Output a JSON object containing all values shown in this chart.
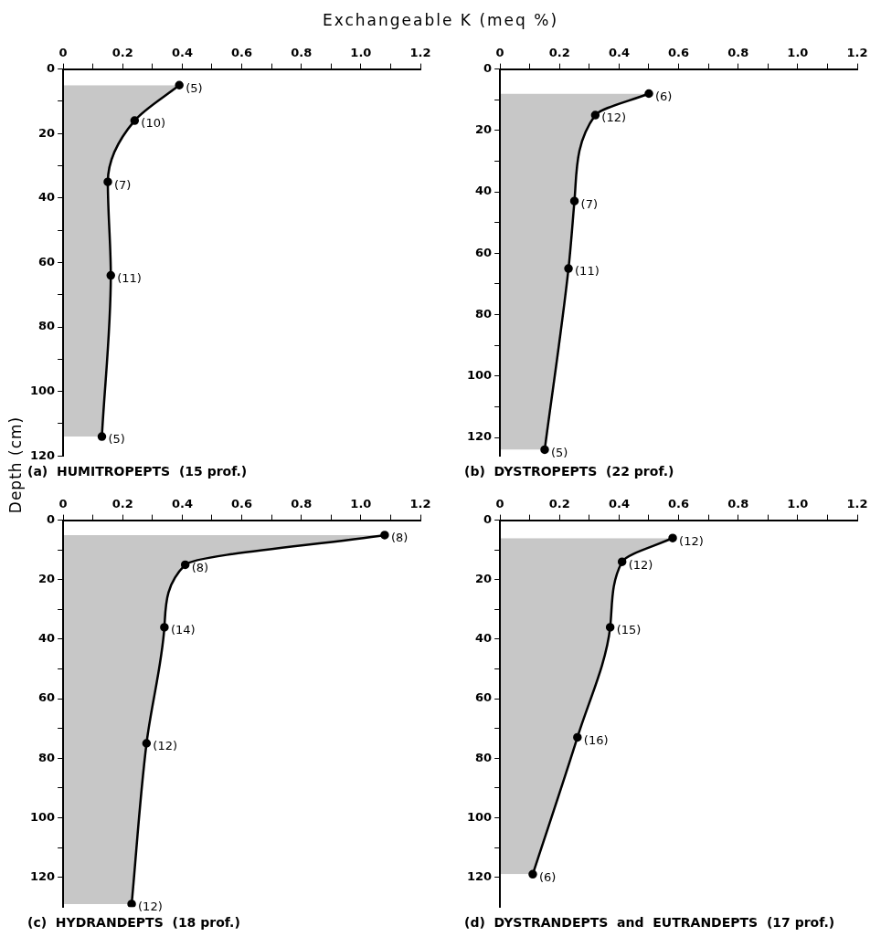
{
  "chart_data": [
    {
      "type": "area",
      "orientation": "horizontal",
      "title": "(a)  HUMITROPEPTS  (15 prof.)",
      "xlabel": "Exchangeable  K  (meq %)",
      "ylabel": "Depth (cm)",
      "marker": "circle",
      "x": [
        5,
        16,
        35,
        64,
        114
      ],
      "values": [
        0.39,
        0.24,
        0.15,
        0.16,
        0.13
      ],
      "color": "#000000",
      "annotations": [
        {
          "text": "(5)",
          "x": 0.39,
          "y": 5
        },
        {
          "text": "(10)",
          "x": 0.24,
          "y": 16
        },
        {
          "text": "(7)",
          "x": 0.15,
          "y": 35
        },
        {
          "text": "(11)",
          "x": 0.16,
          "y": 64
        },
        {
          "text": "(5)",
          "x": 0.13,
          "y": 114
        }
      ],
      "xlim": [
        0,
        1.2
      ],
      "xticks": [
        0,
        {
          "value": 0.1,
          "label": null
        },
        0.2,
        {
          "value": 0.3,
          "label": null
        },
        0.4,
        {
          "value": 0.5,
          "label": null
        },
        0.6,
        {
          "value": 0.7,
          "label": null
        },
        0.8,
        {
          "value": 0.9,
          "label": null
        },
        {
          "value": 1.0,
          "label": "1.0"
        },
        {
          "value": 1.1,
          "label": null
        },
        1.2
      ],
      "ylim": [
        120,
        0
      ],
      "yticks": [
        0,
        {
          "value": 10,
          "label": null
        },
        20,
        {
          "value": 30,
          "label": null
        },
        40,
        {
          "value": 50,
          "label": null
        },
        60,
        {
          "value": 70,
          "label": null
        },
        80,
        {
          "value": 90,
          "label": null
        },
        100,
        {
          "value": 110,
          "label": null
        },
        120
      ]
    },
    {
      "type": "area",
      "orientation": "horizontal",
      "title": "(b)  DYSTROPEPTS  (22 prof.)",
      "marker": "circle",
      "x": [
        8,
        15,
        43,
        65,
        124
      ],
      "values": [
        0.5,
        0.32,
        0.25,
        0.23,
        0.15
      ],
      "color": "#000000",
      "annotations": [
        {
          "text": "(6)",
          "x": 0.5,
          "y": 8
        },
        {
          "text": "(12)",
          "x": 0.32,
          "y": 15
        },
        {
          "text": "(7)",
          "x": 0.25,
          "y": 43
        },
        {
          "text": "(11)",
          "x": 0.23,
          "y": 65
        },
        {
          "text": "(5)",
          "x": 0.15,
          "y": 124
        }
      ],
      "xlim": [
        0,
        1.2
      ],
      "xticks": [
        0,
        {
          "value": 0.1,
          "label": null
        },
        0.2,
        {
          "value": 0.3,
          "label": null
        },
        0.4,
        {
          "value": 0.5,
          "label": null
        },
        0.6,
        {
          "value": 0.7,
          "label": null
        },
        0.8,
        {
          "value": 0.9,
          "label": null
        },
        {
          "value": 1.0,
          "label": "1.0"
        },
        {
          "value": 1.1,
          "label": null
        },
        1.2
      ],
      "ylim": [
        126,
        0
      ],
      "yticks": [
        0,
        {
          "value": 10,
          "label": null
        },
        20,
        {
          "value": 30,
          "label": null
        },
        40,
        {
          "value": 50,
          "label": null
        },
        60,
        {
          "value": 70,
          "label": null
        },
        80,
        {
          "value": 90,
          "label": null
        },
        100,
        {
          "value": 110,
          "label": null
        },
        120
      ]
    },
    {
      "type": "area",
      "orientation": "horizontal",
      "title": "(c)  HYDRANDEPTS  (18 prof.)",
      "marker": "circle",
      "x": [
        5,
        15,
        36,
        75,
        129
      ],
      "values": [
        1.08,
        0.41,
        0.34,
        0.28,
        0.23
      ],
      "color": "#000000",
      "annotations": [
        {
          "text": "(8)",
          "x": 1.08,
          "y": 5
        },
        {
          "text": "(8)",
          "x": 0.41,
          "y": 15
        },
        {
          "text": "(14)",
          "x": 0.34,
          "y": 36
        },
        {
          "text": "(12)",
          "x": 0.28,
          "y": 75
        },
        {
          "text": "(12)",
          "x": 0.23,
          "y": 129
        }
      ],
      "xlim": [
        0,
        1.2
      ],
      "xticks": [
        0,
        {
          "value": 0.1,
          "label": null
        },
        0.2,
        {
          "value": 0.3,
          "label": null
        },
        0.4,
        {
          "value": 0.5,
          "label": null
        },
        0.6,
        {
          "value": 0.7,
          "label": null
        },
        0.8,
        {
          "value": 0.9,
          "label": null
        },
        {
          "value": 1.0,
          "label": "1.0"
        },
        {
          "value": 1.1,
          "label": null
        },
        1.2
      ],
      "ylim": [
        130,
        0
      ],
      "yticks": [
        0,
        {
          "value": 10,
          "label": null
        },
        20,
        {
          "value": 30,
          "label": null
        },
        40,
        {
          "value": 50,
          "label": null
        },
        60,
        {
          "value": 70,
          "label": null
        },
        80,
        {
          "value": 90,
          "label": null
        },
        100,
        {
          "value": 110,
          "label": null
        },
        120
      ]
    },
    {
      "type": "area",
      "orientation": "horizontal",
      "title": "(d)  DYSTRANDEPTS  and  EUTRANDEPTS  (17 prof.)",
      "marker": "circle",
      "x": [
        6,
        14,
        36,
        73,
        119
      ],
      "values": [
        0.58,
        0.41,
        0.37,
        0.26,
        0.11
      ],
      "color": "#000000",
      "annotations": [
        {
          "text": "(12)",
          "x": 0.58,
          "y": 6
        },
        {
          "text": "(12)",
          "x": 0.41,
          "y": 14
        },
        {
          "text": "(15)",
          "x": 0.37,
          "y": 36
        },
        {
          "text": "(16)",
          "x": 0.26,
          "y": 73
        },
        {
          "text": "(6)",
          "x": 0.11,
          "y": 119
        }
      ],
      "xlim": [
        0,
        1.2
      ],
      "xticks": [
        0,
        {
          "value": 0.1,
          "label": null
        },
        0.2,
        {
          "value": 0.3,
          "label": null
        },
        0.4,
        {
          "value": 0.5,
          "label": null
        },
        0.6,
        {
          "value": 0.7,
          "label": null
        },
        0.8,
        {
          "value": 0.9,
          "label": null
        },
        {
          "value": 1.0,
          "label": "1.0"
        },
        {
          "value": 1.1,
          "label": null
        },
        1.2
      ],
      "ylim": [
        130,
        0
      ],
      "yticks": [
        0,
        {
          "value": 10,
          "label": null
        },
        20,
        {
          "value": 30,
          "label": null
        },
        40,
        {
          "value": 50,
          "label": null
        },
        60,
        {
          "value": 70,
          "label": null
        },
        80,
        {
          "value": 90,
          "label": null
        },
        100,
        {
          "value": 110,
          "label": null
        },
        120
      ]
    }
  ]
}
